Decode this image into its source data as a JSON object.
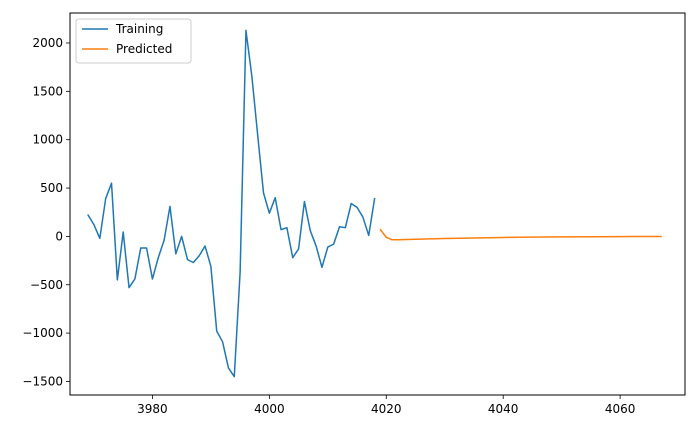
{
  "chart_data": {
    "type": "line",
    "title": "",
    "xlabel": "",
    "ylabel": "",
    "xlim": [
      3965.9,
      4071.1
    ],
    "ylim": [
      -1640,
      2310
    ],
    "grid": false,
    "legend_position": "top-left",
    "x_ticks": [
      3980,
      4000,
      4020,
      4040,
      4060
    ],
    "y_ticks": [
      -1500,
      -1000,
      -500,
      0,
      500,
      1000,
      1500,
      2000
    ],
    "x_tick_labels": [
      "3980",
      "4000",
      "4020",
      "4040",
      "4060"
    ],
    "y_tick_labels": [
      "−1500",
      "−1000",
      "−500",
      "0",
      "500",
      "1000",
      "1500",
      "2000"
    ],
    "series": [
      {
        "name": "Training",
        "color": "#1f77b4",
        "x": [
          3969,
          3970,
          3971,
          3972,
          3973,
          3974,
          3975,
          3976,
          3977,
          3978,
          3979,
          3980,
          3981,
          3982,
          3983,
          3984,
          3985,
          3986,
          3987,
          3988,
          3989,
          3990,
          3991,
          3992,
          3993,
          3994,
          3995,
          3996,
          3997,
          3998,
          3999,
          4000,
          4001,
          4002,
          4003,
          4004,
          4005,
          4006,
          4007,
          4008,
          4009,
          4010,
          4011,
          4012,
          4013,
          4014,
          4015,
          4016,
          4017,
          4018
        ],
        "y": [
          220,
          120,
          -20,
          390,
          550,
          -450,
          45,
          -530,
          -440,
          -120,
          -120,
          -440,
          -220,
          -40,
          310,
          -180,
          0,
          -240,
          -270,
          -200,
          -100,
          -310,
          -980,
          -1090,
          -1360,
          -1450,
          -370,
          2130,
          1660,
          1050,
          450,
          240,
          400,
          70,
          90,
          -220,
          -130,
          360,
          60,
          -100,
          -320,
          -110,
          -80,
          100,
          90,
          340,
          300,
          200,
          10,
          390
        ]
      },
      {
        "name": "Predicted",
        "color": "#ff7f0e",
        "x": [
          4019,
          4020,
          4021,
          4022,
          4025,
          4030,
          4035,
          4040,
          4045,
          4050,
          4055,
          4060,
          4067
        ],
        "y": [
          70,
          -10,
          -35,
          -35,
          -30,
          -22,
          -16,
          -11,
          -8,
          -5,
          -3,
          -2,
          -1
        ]
      }
    ]
  }
}
